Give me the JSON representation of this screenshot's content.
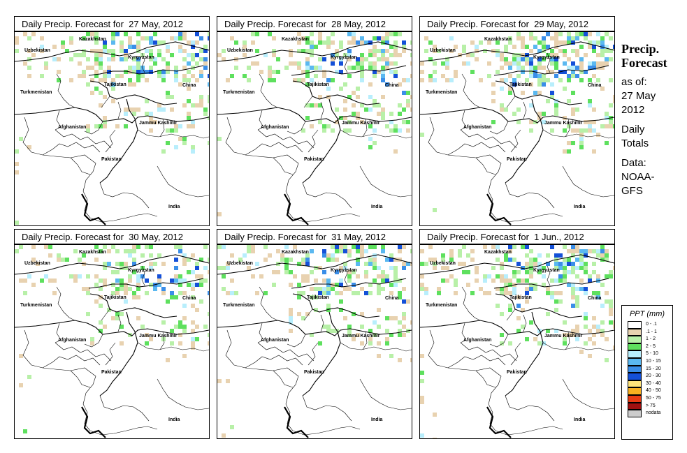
{
  "panels": [
    {
      "title": "Daily Precip. Forecast for  27 May, 2012",
      "seed": 11,
      "intensity": 1.0
    },
    {
      "title": "Daily Precip. Forecast for  28 May, 2012",
      "seed": 23,
      "intensity": 0.9
    },
    {
      "title": "Daily Precip. Forecast for  29 May, 2012",
      "seed": 37,
      "intensity": 1.1
    },
    {
      "title": "Daily Precip. Forecast for  30 May, 2012",
      "seed": 41,
      "intensity": 0.8
    },
    {
      "title": "Daily Precip. Forecast for  31 May, 2012",
      "seed": 53,
      "intensity": 0.9
    },
    {
      "title": "Daily Precip. Forecast for  1 Jun., 2012",
      "seed": 67,
      "intensity": 1.0
    }
  ],
  "map_labels": {
    "kazakhstan": "Kazakhstan",
    "uzbekistan": "Uzbekistan",
    "kyrgyzstan": "Kyrgyzstan",
    "tajikistan": "Tajikistan",
    "turkmenistan": "Turkmenistan",
    "china": "China",
    "afghanistan": "Afghanistan",
    "jammu_kashmir": "Jammu Kashmir",
    "pakistan": "Pakistan",
    "india": "India"
  },
  "side_panel": {
    "title_line1": "Precip.",
    "title_line2": "Forecast",
    "asof_line1": "as of:",
    "asof_line2": "27 May",
    "asof_line3": "2012",
    "totals_line1": "Daily",
    "totals_line2": "Totals",
    "data_line1": "Data:",
    "data_line2": "NOAA-",
    "data_line3": "GFS"
  },
  "legend": {
    "title": "PPT (mm)",
    "items": [
      {
        "label": "0 - .1",
        "color": "#ffffff"
      },
      {
        "label": ".1 - 1",
        "color": "#e8d2b0"
      },
      {
        "label": "1 - 2",
        "color": "#b8f0a8"
      },
      {
        "label": "2 - 5",
        "color": "#5ee05e"
      },
      {
        "label": "5 - 10",
        "color": "#b8eefc"
      },
      {
        "label": "10 - 15",
        "color": "#5ab8f0"
      },
      {
        "label": "15 - 20",
        "color": "#3a8ee8"
      },
      {
        "label": "20 - 30",
        "color": "#1450d8"
      },
      {
        "label": "30 - 40",
        "color": "#ffe47a"
      },
      {
        "label": "40 - 50",
        "color": "#f8b020"
      },
      {
        "label": "50 - 75",
        "color": "#e83c14"
      },
      {
        "label": "> 75",
        "color": "#a01010"
      },
      {
        "label": "nodata",
        "color": "#cccccc"
      }
    ]
  }
}
